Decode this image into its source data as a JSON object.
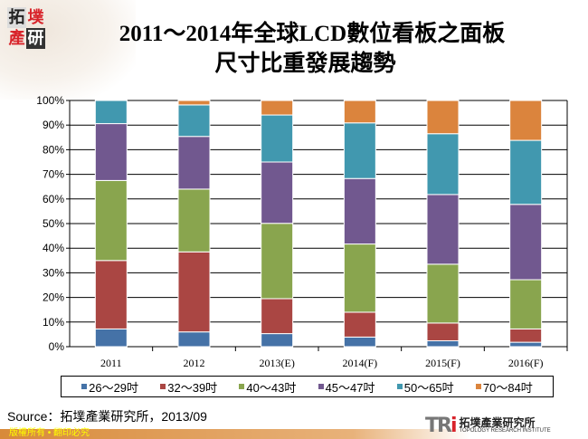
{
  "logo_text": [
    "拓",
    "墣",
    "產",
    "研"
  ],
  "title_line1": "2011～2014年全球LCD數位看板之面板",
  "title_line2": "尺寸比重發展趨勢",
  "chart_data": {
    "type": "bar",
    "stacked": true,
    "categories": [
      "2011",
      "2012",
      "2013(E)",
      "2014(F)",
      "2015(F)",
      "2016(F)"
    ],
    "ylim": [
      0,
      100
    ],
    "yticks": [
      "0%",
      "10%",
      "20%",
      "30%",
      "40%",
      "50%",
      "60%",
      "70%",
      "80%",
      "90%",
      "100%"
    ],
    "grid": true,
    "legend_position": "bottom",
    "series": [
      {
        "name": "26～29吋",
        "color": "#4572a7",
        "values": [
          7.2,
          6.0,
          5.3,
          3.9,
          2.4,
          1.8
        ]
      },
      {
        "name": "32～39吋",
        "color": "#aa4643",
        "values": [
          27.8,
          32.5,
          14.2,
          10.1,
          7.2,
          5.4
        ]
      },
      {
        "name": "40～43吋",
        "color": "#89a54e",
        "values": [
          32.5,
          25.5,
          30.6,
          27.7,
          23.9,
          20.0
        ]
      },
      {
        "name": "45～47吋",
        "color": "#71588f",
        "values": [
          23.1,
          21.4,
          24.9,
          26.6,
          28.3,
          30.6
        ]
      },
      {
        "name": "50～65吋",
        "color": "#4198af",
        "values": [
          9.4,
          12.8,
          19.1,
          22.6,
          24.7,
          26.0
        ]
      },
      {
        "name": "70～84吋",
        "color": "#db843d",
        "values": [
          0,
          1.8,
          5.9,
          9.1,
          13.5,
          16.2
        ]
      }
    ]
  },
  "source": "Source：拓墣產業研究所，2013/09",
  "footer": "版權所有 • 翻印必究",
  "tri_logo": {
    "mark": "TRi",
    "name": "拓墣產業研究所",
    "en": "TOPOLOGY RESEARCH INSTITUTE"
  }
}
